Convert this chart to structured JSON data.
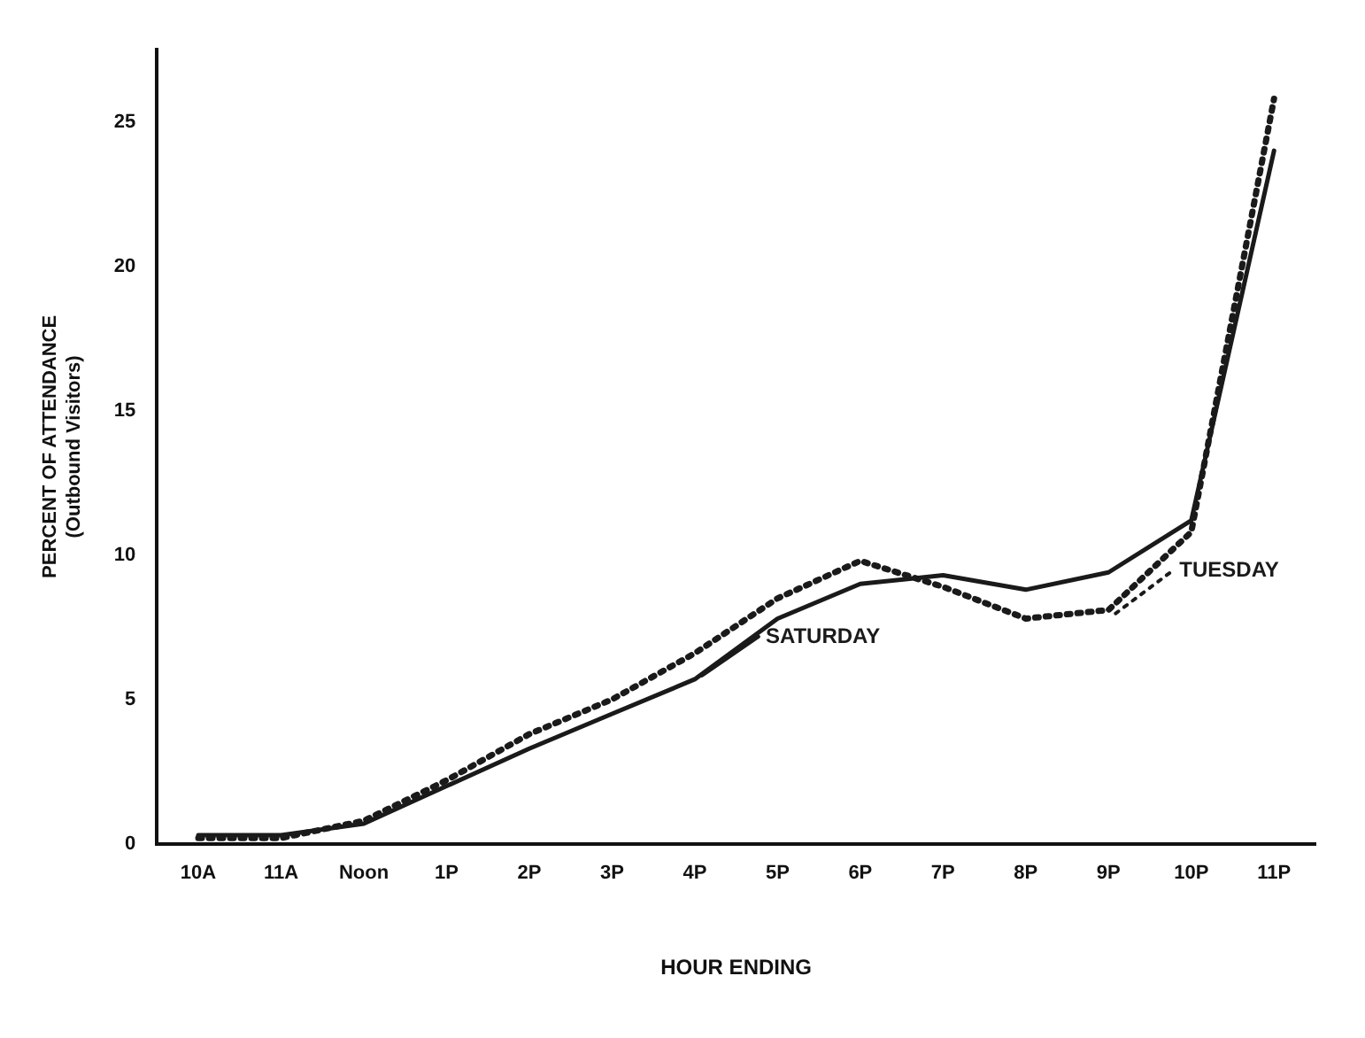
{
  "chart_data": {
    "type": "line",
    "xlabel": "HOUR ENDING",
    "ylabel": "PERCENT OF ATTENDANCE\n(Outbound Visitors)",
    "categories": [
      "10A",
      "11A",
      "Noon",
      "1P",
      "2P",
      "3P",
      "4P",
      "5P",
      "6P",
      "7P",
      "8P",
      "9P",
      "10P",
      "11P"
    ],
    "series": [
      {
        "name": "SATURDAY",
        "color": "#1a1a1a",
        "line_style": "solid",
        "values": [
          0.3,
          0.3,
          0.7,
          2.0,
          3.3,
          4.5,
          5.7,
          7.8,
          9.0,
          9.3,
          8.8,
          9.4,
          11.2,
          24.0
        ]
      },
      {
        "name": "TUESDAY",
        "color": "#1a1a1a",
        "line_style": "dotted",
        "values": [
          0.2,
          0.2,
          0.8,
          2.2,
          3.8,
          5.0,
          6.6,
          8.5,
          9.8,
          8.9,
          7.8,
          8.1,
          10.8,
          25.8
        ]
      }
    ],
    "ylim": [
      0,
      27.5
    ],
    "yticks": [
      0,
      5,
      10,
      15,
      20,
      25
    ],
    "grid": false,
    "legend": false,
    "marker": "none"
  }
}
